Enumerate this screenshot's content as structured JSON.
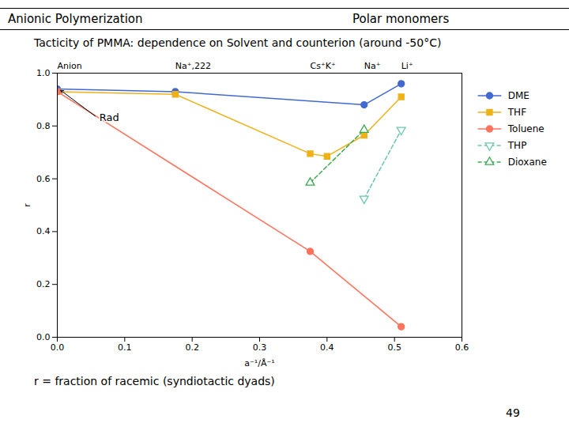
{
  "chart_data": {
    "type": "line",
    "header_left": "Anionic Polymerization",
    "header_right": "Polar monomers",
    "title": "Tacticity of PMMA: dependence on Solvent and counterion (around -50°C)",
    "xlabel": "a⁻¹/Å⁻¹",
    "ylabel": "r",
    "xlim": [
      0.0,
      0.6
    ],
    "ylim": [
      0.0,
      1.0
    ],
    "xticks": [
      {
        "value": 0.0,
        "label": "0.0"
      },
      0.1,
      0.2,
      0.3,
      0.4,
      0.5,
      0.6
    ],
    "yticks": [
      {
        "value": 0.0,
        "label": "0.0"
      },
      0.2,
      0.4,
      0.6,
      0.8,
      {
        "value": 1.0,
        "label": "1.0"
      }
    ],
    "grid": false,
    "legend": "right",
    "series": [
      {
        "name": "DME",
        "x": [
          0.0,
          0.175,
          0.455,
          0.51
        ],
        "values": [
          0.94,
          0.93,
          0.88,
          0.96
        ],
        "marker": "filled circle",
        "line_style": "solid"
      },
      {
        "name": "THF",
        "x": [
          0.0,
          0.175,
          0.375,
          0.4,
          0.455,
          0.51
        ],
        "values": [
          0.93,
          0.92,
          0.695,
          0.685,
          0.765,
          0.91
        ],
        "marker": "filled square",
        "line_style": "solid"
      },
      {
        "name": "Toluene",
        "x": [
          0.0,
          0.375,
          0.51
        ],
        "values": [
          0.93,
          0.325,
          0.04
        ],
        "marker": "filled circle",
        "line_style": "solid"
      },
      {
        "name": "THP",
        "x": [
          0.455,
          0.51
        ],
        "values": [
          0.525,
          0.785
        ],
        "marker": "open triangle-down",
        "line_style": "dashed"
      },
      {
        "name": "Dioxane",
        "x": [
          0.375,
          0.455
        ],
        "values": [
          0.585,
          0.785
        ],
        "marker": "open triangle",
        "line_style": "dashed"
      }
    ],
    "top_labels": [
      {
        "text": "Anion",
        "x": 0.0
      },
      {
        "text": "Na⁺,222",
        "x": 0.175
      },
      {
        "text": "Cs⁺K⁺",
        "x": 0.375
      },
      {
        "text": "Na⁺",
        "x": 0.455
      },
      {
        "text": "Li⁺",
        "x": 0.51
      }
    ],
    "annotations": [
      {
        "text": "Rad",
        "x": 0.06,
        "y": 0.83,
        "arrow_x": 0.005,
        "arrow_y": 0.935
      }
    ],
    "footnote": "r = fraction of racemic (syndiotactic dyads)",
    "page_number": "49"
  }
}
